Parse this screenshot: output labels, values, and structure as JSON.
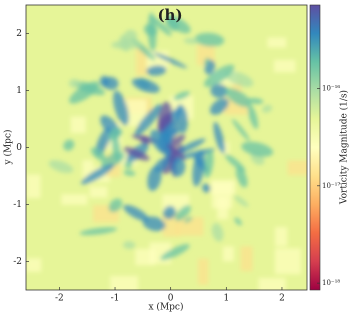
{
  "chart_data": {
    "type": "heatmap",
    "title": "(h)",
    "x_label": "x (Mpc)",
    "y_label": "y (Mpc)",
    "xlim": [
      -2.6,
      2.45
    ],
    "ylim": [
      -2.5,
      2.5
    ],
    "xticks": [
      -2,
      -1,
      0,
      1,
      2
    ],
    "yticks": [
      -2,
      -1,
      0,
      1,
      2
    ],
    "colorbar": {
      "label": "Vorticity Magnitude  (1/s)",
      "log": true,
      "lim": [
        8.5e-19,
        7.2e-16
      ],
      "ticks": [
        {
          "value": 1e-18,
          "label": "10⁻¹⁸"
        },
        {
          "value": 1e-17,
          "label": "10⁻¹⁷"
        },
        {
          "value": 1e-16,
          "label": "10⁻¹⁶"
        }
      ],
      "colormap": [
        "#9e0142",
        "#d53e4f",
        "#f46d43",
        "#fdae61",
        "#fee08b",
        "#ffffbf",
        "#e6f598",
        "#abdda4",
        "#66c2a5",
        "#3288bd",
        "#5e4fa2"
      ]
    }
  }
}
